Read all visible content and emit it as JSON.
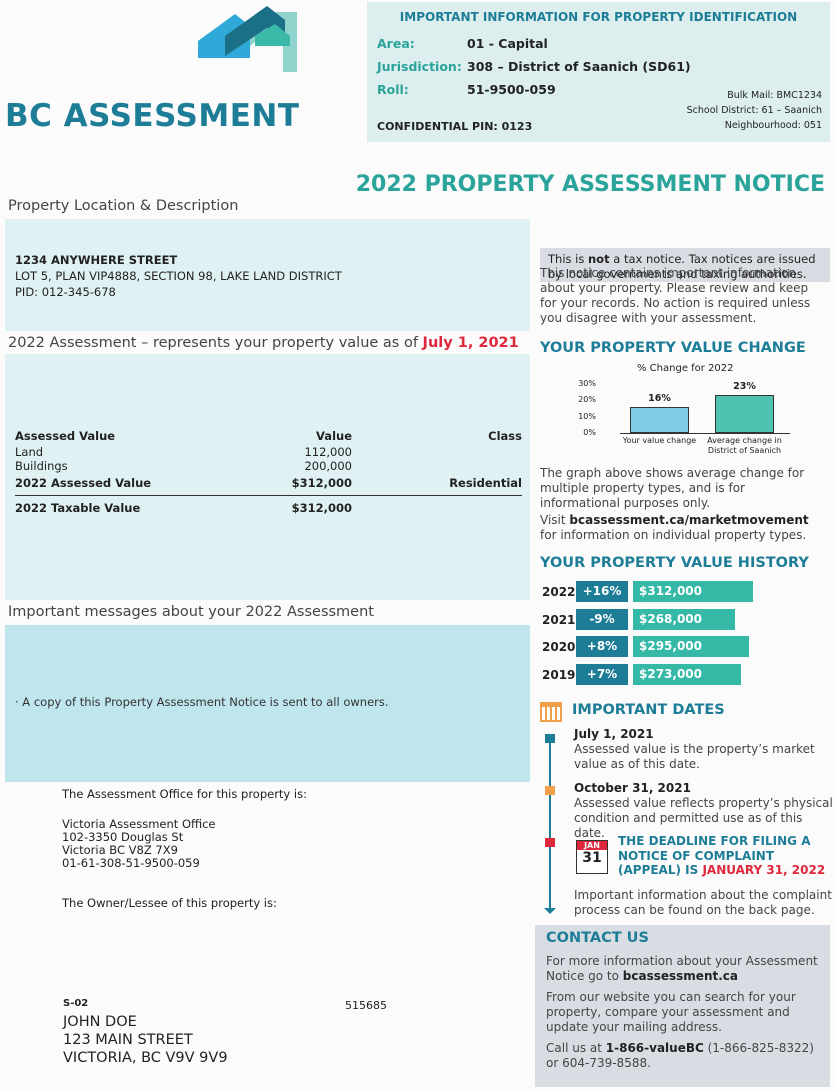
{
  "header": {
    "logo_text": "BC ASSESSMENT"
  },
  "id_box": {
    "title": "IMPORTANT INFORMATION FOR PROPERTY IDENTIFICATION",
    "fields": [
      {
        "label": "Area:",
        "value": "01 - Capital"
      },
      {
        "label": "Jurisdiction:",
        "value": "308 – District of Saanich (SD61)"
      },
      {
        "label": "Roll:",
        "value": "51-9500-059"
      }
    ],
    "pin": "CONFIDENTIAL PIN: 0123",
    "side": [
      "Bulk Mail: BMC1234",
      "School District: 61 – Saanich",
      "Neighbourhood: 051"
    ]
  },
  "title": "2022 PROPERTY ASSESSMENT NOTICE",
  "location": {
    "heading": "Property Location & Description",
    "lines": [
      "1234 ANYWHERE STREET",
      "LOT 5, PLAN VIP4888, SECTION 98, LAKE LAND DISTRICT",
      "PID: 012-345-678"
    ]
  },
  "assessment": {
    "heading": "2022 Assessment – represents your property value as of ",
    "heading_date": "July 1, 2021",
    "columns": [
      "Assessed Value",
      "Value",
      "Class"
    ],
    "rows": [
      [
        "Land",
        "112,000"
      ],
      [
        "Buildings",
        "200,000"
      ],
      [
        "2022 Assessed Value",
        "$312,000",
        "Residential"
      ],
      [
        "2022 Taxable Value",
        "$312,000"
      ]
    ]
  },
  "messages": {
    "heading": "Important messages about your 2022 Assessment",
    "items": [
      "· A copy of this Property Assessment Notice is sent to all owners."
    ]
  },
  "office": {
    "intro": "The Assessment Office for this property is:",
    "lines": [
      "Victoria Assessment Office",
      "102-3350 Douglas St",
      "Victoria BC V8Z 7X9",
      "01-61-308-51-9500-059"
    ],
    "owner_intro": "The Owner/Lessee of this property is:"
  },
  "mailing": {
    "code": "S-02",
    "number": "515685",
    "lines": [
      "JOHN DOE",
      "123 MAIN STREET",
      "VICTORIA, BC V9V 9V9"
    ]
  },
  "notice_box": [
    "This is ",
    "not",
    " a tax notice. Tax notices are issued by local governments and taxing authorities."
  ],
  "intro": "This notice contains important information about your property. Please review and keep for your records. No action is required unless you disagree with your assessment.",
  "value_change": {
    "heading": "YOUR PROPERTY VALUE CHANGE",
    "chart": {
      "type": "bar",
      "title": "% Change for 2022",
      "categories": [
        "Your value change",
        "Average change in District of Saanich"
      ],
      "values": [
        16,
        23
      ],
      "value_labels": [
        "16%",
        "23%"
      ],
      "colors": [
        "#7fcde6",
        "#4fc3b0"
      ],
      "ylim": [
        0,
        30
      ],
      "yticks": [
        {
          "value": 0,
          "label": "0%"
        },
        {
          "value": 10,
          "label": "10%"
        },
        {
          "value": 20,
          "label": "20%"
        },
        {
          "value": 30,
          "label": "30%"
        }
      ]
    },
    "note": "The graph above shows average change for multiple property types, and is for informational purposes only.",
    "visit": [
      "Visit ",
      "bcassessment.ca/marketmovement",
      " for information on individual property types."
    ]
  },
  "history": {
    "heading": "YOUR PROPERTY VALUE HISTORY",
    "rows": [
      {
        "year": "2022",
        "change": "+16%",
        "value": "$312,000"
      },
      {
        "year": "2021",
        "change": "-9%",
        "value": "$268,000"
      },
      {
        "year": "2020",
        "change": "+8%",
        "value": "$295,000"
      },
      {
        "year": "2019",
        "change": "+7%",
        "value": "$273,000"
      }
    ]
  },
  "dates": {
    "heading": "IMPORTANT DATES",
    "items": [
      {
        "date": "July 1, 2021",
        "text": "Assessed value is the property’s market value as of this date."
      },
      {
        "date": "October 31, 2021",
        "text": "Assessed value reflects property’s physical condition and permitted use as of this date."
      }
    ],
    "calendar": [
      "JAN",
      "31"
    ],
    "deadline": [
      "THE DEADLINE FOR FILING A NOTICE OF COMPLAINT (APPEAL) IS ",
      "JANUARY 31, 2022"
    ],
    "footer": "Important information about the complaint process can be found on the back page."
  },
  "contact": {
    "heading": "CONTACT US",
    "p1": [
      "For more information about your Assessment Notice go to ",
      "bcassessment.ca"
    ],
    "p2": "From our website you can search for your property, compare your assessment and update your mailing address.",
    "p3": [
      "Call us at ",
      "1-866-valueBC",
      " (1-866-825-8322) or 604-739-8588."
    ]
  }
}
